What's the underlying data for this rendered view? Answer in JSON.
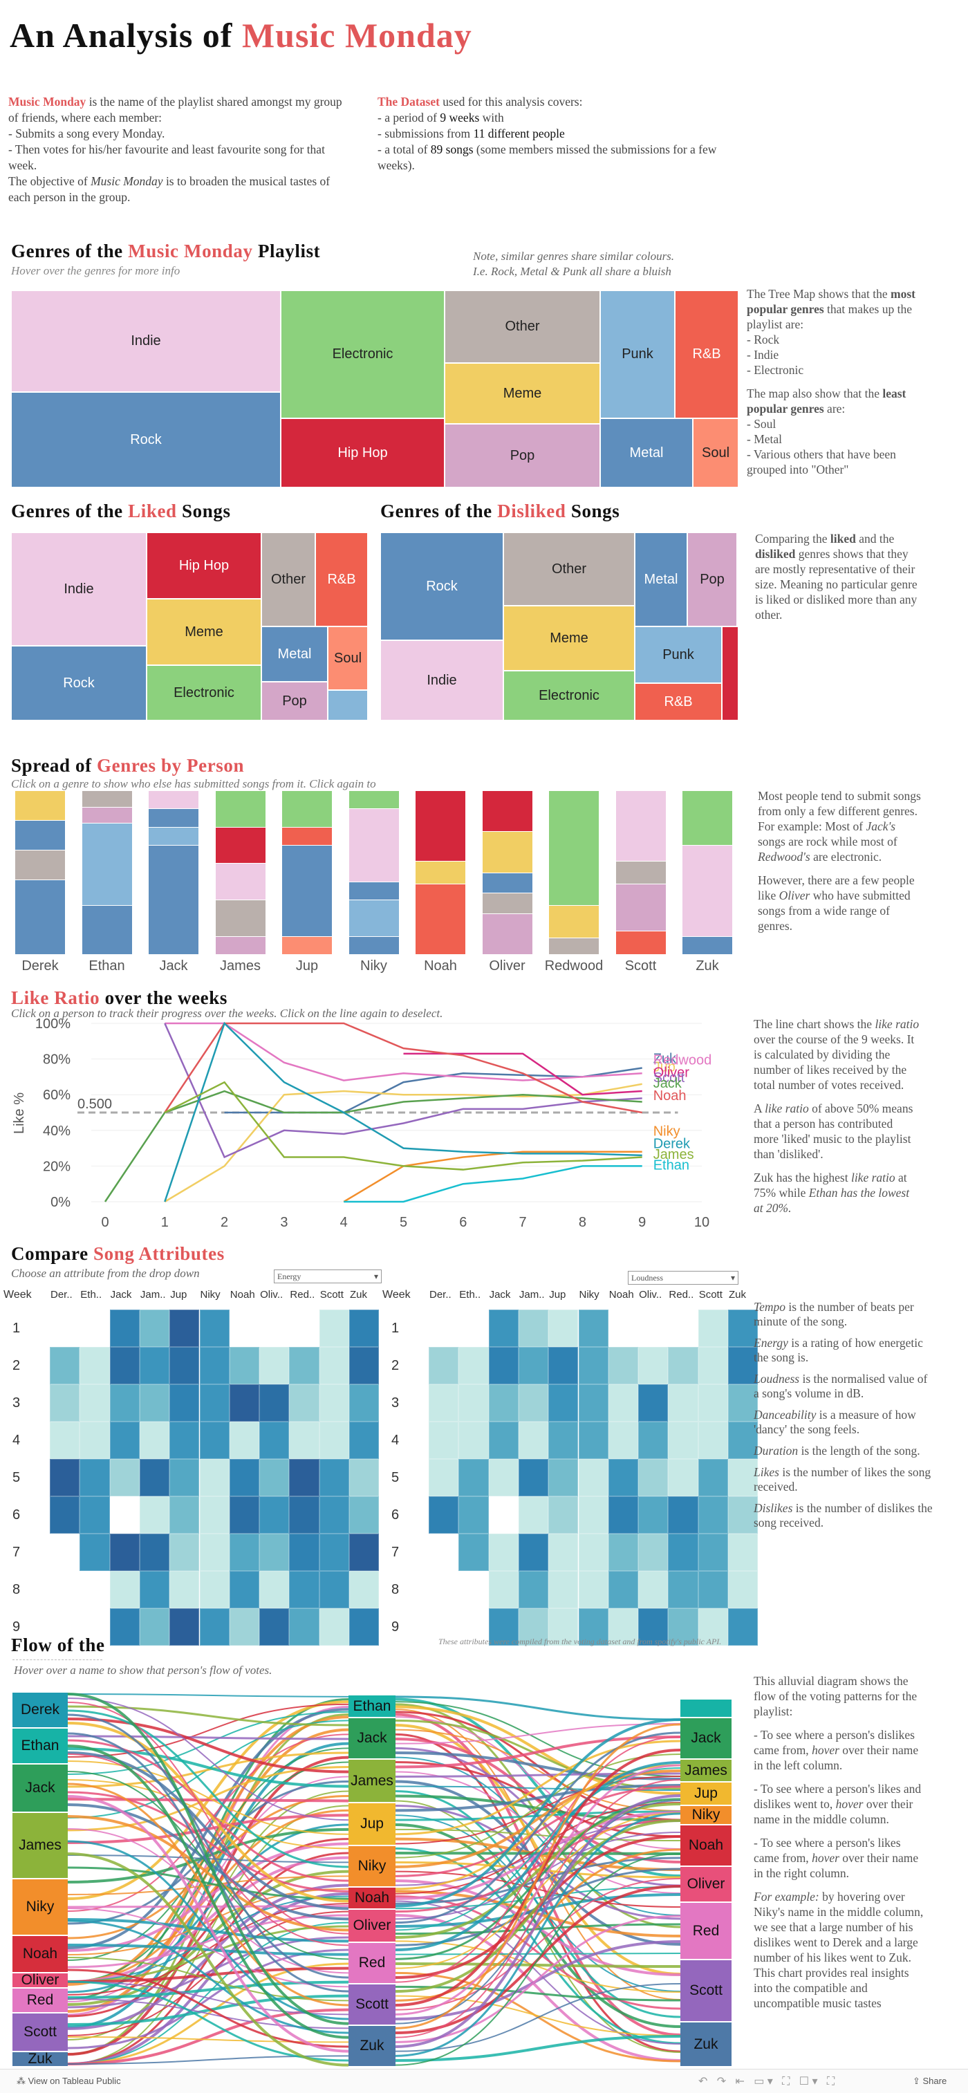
{
  "title": {
    "pre": "An Analysis of",
    "accent": "Music Monday"
  },
  "intro": {
    "left": {
      "name": "Music Monday",
      "text1": " is the name of the playlist shared amongst my group of friends, where each member:",
      "l1": "- Submits a song every Monday.",
      "l2": "- Then votes for his/her favourite and least favourite song for that week.",
      "l3a": "The objective of ",
      "l3b": "Music Monday",
      "l3c": " is to broaden the musical tastes of each person in the group."
    },
    "right": {
      "name": "The Dataset",
      "text1": " used for this analysis covers:",
      "a1": "- a period of ",
      "a2": "9 weeks",
      "a3": " with",
      "b1": "- submissions from ",
      "b2": "11 different people",
      "c1": "- a total of ",
      "c2": "89 songs",
      "c3": " (some members missed the submissions for a few weeks)."
    }
  },
  "genres": {
    "h_pre": "Genres of the",
    "h_acc": "Music Monday",
    "h_post": "Playlist",
    "sub_a": "Hover",
    "sub_b": " over the genres for more info",
    "note1": "Note, similar genres share similar colours.",
    "note2": "I.e. Rock, Metal & Punk all share a bluish",
    "side1": "The Tree Map shows that the ",
    "side1b": "most popular genres",
    "side1c": " that makes up the playlist are:",
    "s_l1": "- Rock",
    "s_l2": "- Indie",
    "s_l3": "- Electronic",
    "side2": "The map also show that the ",
    "side2b": "least popular genres",
    "side2c": " are:",
    "s_m1": "- Soul",
    "s_m2": "- Metal",
    "s_m3": "- Various others that have been grouped into \"Other\"",
    "cells": {
      "indie": "Indie",
      "rock": "Rock",
      "electronic": "Electronic",
      "hiphop": "Hip Hop",
      "other": "Other",
      "meme": "Meme",
      "pop": "Pop",
      "punk": "Punk",
      "rnb": "R&B",
      "metal": "Metal",
      "soul": "Soul"
    }
  },
  "liked": {
    "h_pre": "Genres of the",
    "h_acc": "Liked",
    "h_post": "Songs"
  },
  "disliked": {
    "h_pre": "Genres of the",
    "h_acc": "Disliked",
    "h_post": "Songs"
  },
  "compare_note": {
    "a": "Comparing the ",
    "b": "liked",
    "c": " and the ",
    "d": "disliked",
    "e": " genres shows that they are mostly representative of their size. Meaning no particular genre is liked or disliked more than any other."
  },
  "spread": {
    "h_pre": "Spread of",
    "h_acc": "Genres by Person",
    "sub": "Click on a genre to show who else has submitted songs from it. Click again to",
    "people": [
      "Derek",
      "Ethan",
      "Jack",
      "James",
      "Jup",
      "Niky",
      "Noah",
      "Oliver",
      "Redwood",
      "Scott",
      "Zuk"
    ],
    "note1": "Most people tend to submit songs from only a few different genres.",
    "note2a": "For example: Most of ",
    "note2b": "Jack's",
    "note2c": " songs are rock while most of ",
    "note2d": "Redwood's",
    "note2e": " are electronic.",
    "note3a": "However, there are a few people like ",
    "note3b": "Oliver",
    "note3c": " who have submitted songs from a wide range of genres."
  },
  "likeratio": {
    "h_acc": "Like Ratio",
    "h_post": "over the weeks",
    "sub_a": "Click",
    "sub_b": " on a person to track their progress over the weeks. ",
    "sub_c": "Click",
    "sub_d": " on the line again to deselect.",
    "ylabel": "Like %",
    "ref": "0.500",
    "yticks": [
      "100%",
      "80%",
      "60%",
      "40%",
      "20%",
      "0%"
    ],
    "xticks": [
      "0",
      "1",
      "2",
      "3",
      "4",
      "5",
      "6",
      "7",
      "8",
      "9",
      "10"
    ],
    "legend": [
      "Zuk",
      "Redwood",
      "Jup",
      "Oliver",
      "Scott",
      "Jack",
      "Noah",
      "Niky",
      "Derek",
      "James",
      "Ethan"
    ],
    "n1a": "The line chart shows the ",
    "n1b": "like ratio",
    "n1c": " over the course of the 9 weeks. It is calculated by dividing the number of likes received by the total number of votes received.",
    "n2a": "A ",
    "n2b": "like ratio",
    "n2c": " of above 50% means that a person has contributed more 'liked' music to the playlist than 'disliked'.",
    "n3a": "Zuk has the highest ",
    "n3b": "like ratio",
    "n3c": " at 75% while ",
    "n3d": "Ethan has the lowest at 20%."
  },
  "chart_data": {
    "type": "line",
    "title": "Like Ratio over the weeks",
    "xlabel": "",
    "ylabel": "Like %",
    "ylim": [
      0,
      1
    ],
    "xlim": [
      0,
      10
    ],
    "reference_line": 0.5,
    "series": [
      {
        "name": "Zuk",
        "color": "#4e79a7",
        "x": [
          2,
          3,
          4,
          5,
          6,
          7,
          8,
          9
        ],
        "values": [
          0.5,
          0.5,
          0.5,
          0.67,
          0.72,
          0.71,
          0.7,
          0.75
        ]
      },
      {
        "name": "Redwood",
        "color": "#e377c2",
        "x": [
          1,
          2,
          3,
          4,
          5,
          6,
          7,
          8,
          9
        ],
        "values": [
          1.0,
          1.0,
          0.78,
          0.68,
          0.72,
          0.7,
          0.68,
          0.7,
          0.72
        ]
      },
      {
        "name": "Jup",
        "color": "#f1ce63",
        "x": [
          1,
          2,
          3,
          4,
          5,
          6,
          7,
          8,
          9
        ],
        "values": [
          0,
          0.2,
          0.6,
          0.62,
          0.6,
          0.6,
          0.59,
          0.6,
          0.66
        ]
      },
      {
        "name": "Oliver",
        "color": "#d62782",
        "x": [
          5,
          6,
          7,
          8,
          9
        ],
        "values": [
          0.83,
          0.83,
          0.83,
          0.6,
          0.62
        ]
      },
      {
        "name": "Scott",
        "color": "#9467bd",
        "x": [
          1,
          2,
          3,
          4,
          5,
          6,
          7,
          8,
          9
        ],
        "values": [
          1.0,
          0.25,
          0.4,
          0.38,
          0.44,
          0.52,
          0.52,
          0.56,
          0.58
        ]
      },
      {
        "name": "Jack",
        "color": "#59a14f",
        "x": [
          0,
          1,
          2,
          3,
          4,
          5,
          6,
          7,
          8,
          9
        ],
        "values": [
          0,
          0.5,
          0.62,
          0.5,
          0.5,
          0.56,
          0.58,
          0.6,
          0.58,
          0.56
        ]
      },
      {
        "name": "Noah",
        "color": "#e15759",
        "x": [
          1,
          2,
          3,
          4,
          5,
          6,
          7,
          8,
          9
        ],
        "values": [
          0.5,
          1.0,
          1.0,
          1.0,
          0.86,
          0.82,
          0.72,
          0.56,
          0.5
        ]
      },
      {
        "name": "Niky",
        "color": "#f28e2b",
        "x": [
          4,
          5,
          6,
          7,
          8,
          9
        ],
        "values": [
          0,
          0.2,
          0.25,
          0.28,
          0.28,
          0.28
        ]
      },
      {
        "name": "Derek",
        "color": "#1f9bb2",
        "x": [
          1,
          2,
          3,
          4,
          5,
          6,
          7,
          8,
          9
        ],
        "values": [
          0,
          1.0,
          0.67,
          0.5,
          0.3,
          0.28,
          0.27,
          0.27,
          0.26
        ]
      },
      {
        "name": "James",
        "color": "#8cb33a",
        "x": [
          1,
          2,
          3,
          4,
          5,
          6,
          7,
          8,
          9
        ],
        "values": [
          0.5,
          0.67,
          0.25,
          0.25,
          0.2,
          0.18,
          0.22,
          0.23,
          0.25
        ]
      },
      {
        "name": "Ethan",
        "color": "#17becf",
        "x": [
          4,
          5,
          6,
          7,
          8,
          9
        ],
        "values": [
          0,
          0,
          0.1,
          0.13,
          0.2,
          0.2
        ]
      }
    ]
  },
  "compare": {
    "h_pre": "Compare",
    "h_acc": "Song Attributes",
    "sub_a": "Choose",
    "sub_b": " an attribute from the drop down",
    "sel_left": "Energy",
    "sel_right": "Loudness",
    "week_label": "Week",
    "cols": [
      "Der..",
      "Eth..",
      "Jack",
      "Jam..",
      "Jup",
      "Niky",
      "Noah",
      "Oliv..",
      "Red..",
      "Scott",
      "Zuk"
    ],
    "weeks": [
      "1",
      "2",
      "3",
      "4",
      "5",
      "6",
      "7",
      "8",
      "9"
    ],
    "source": "These attributes were compiled from the voting dataset and from spotify's public API.",
    "d_tempo_a": "Tempo",
    "d_tempo_b": " is the number of beats per minute of the song.",
    "d_energy_a": "Energy",
    "d_energy_b": " is a rating of how energetic the song is.",
    "d_loud_a": "Loudness",
    "d_loud_b": " is the normalised value of a song's volume in dB.",
    "d_dance_a": "Danceability",
    "d_dance_b": " is a measure of how 'dancy' the song feels.",
    "d_dur_a": "Duration",
    "d_dur_b": " is the length of the song.",
    "d_likes_a": "Likes",
    "d_likes_b": " is the number of likes the song received.",
    "d_dis_a": "Dislikes",
    "d_dis_b": " is the number of dislikes the song received."
  },
  "flow": {
    "h_pre": "Flow of the",
    "sub_a": "Hover",
    "sub_b": " over a name to show that person's flow of votes.",
    "left": [
      "Derek",
      "Ethan",
      "Jack",
      "James",
      "Niky",
      "Noah",
      "Oliver",
      "Red",
      "Scott",
      "Zuk"
    ],
    "mid": [
      "Ethan",
      "Jack",
      "James",
      "Jup",
      "Niky",
      "Noah",
      "Oliver",
      "Red",
      "Scott",
      "Zuk"
    ],
    "right": [
      "Jack",
      "James",
      "Jup",
      "Niky",
      "Noah",
      "Oliver",
      "Red",
      "Scott",
      "Zuk"
    ],
    "n1": "This alluvial diagram shows the flow of the voting patterns for the playlist:",
    "n2a": "- To see where a person's dislikes came from, ",
    "n2b": "hover",
    "n2c": " over their name in the left column.",
    "n3a": "- To see where a person's likes and dislikes went to, ",
    "n3b": "hover",
    "n3c": " over their name in the middle column.",
    "n4a": "- To see where a person's likes came from, ",
    "n4b": "hover",
    "n4c": " over their name in the right column.",
    "n5a": "For example:",
    "n5b": " by hovering over Niky's name in the middle column, we see that a large number of his dislikes went to Derek and a large number of his likes went to Zuk.",
    "n6": "This chart provides real insights into the compatible and uncompatible music tastes"
  },
  "footer": {
    "label": "View on Tableau Public",
    "share": "Share"
  },
  "colors": {
    "accent": "#e15759"
  }
}
